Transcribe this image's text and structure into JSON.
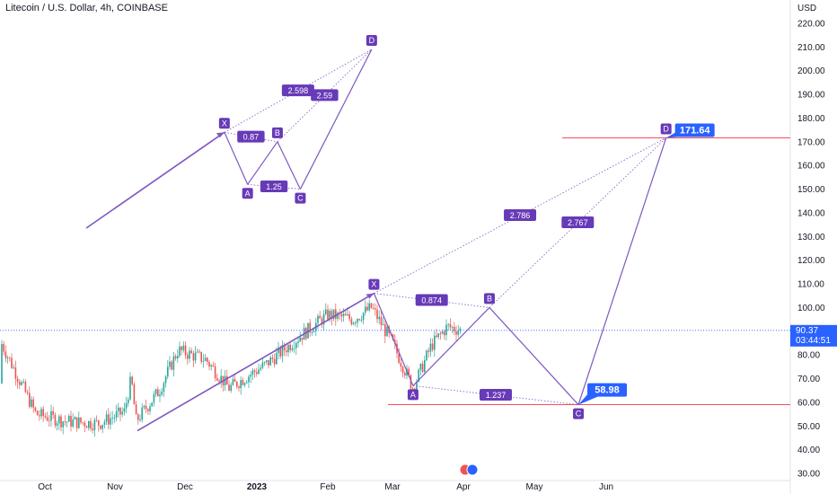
{
  "header": {
    "title": "Litecoin / U.S. Dollar, 4h, COINBASE"
  },
  "chart_data": {
    "type": "candlestick",
    "currency_label": "USD",
    "y_ticks": [
      "220.00",
      "210.00",
      "200.00",
      "190.00",
      "180.00",
      "170.00",
      "160.00",
      "150.00",
      "140.00",
      "130.00",
      "120.00",
      "110.00",
      "100.00",
      "90.00",
      "80.00",
      "70.00",
      "60.00",
      "50.00",
      "40.00",
      "30.00"
    ],
    "y_tick_values": [
      220,
      210,
      200,
      190,
      180,
      170,
      160,
      150,
      140,
      130,
      120,
      110,
      100,
      90,
      80,
      70,
      60,
      50,
      40,
      30
    ],
    "x_ticks": [
      "Oct",
      "Nov",
      "Dec",
      "2023",
      "Feb",
      "Mar",
      "Apr",
      "May",
      "Jun"
    ],
    "ylim": [
      28,
      229
    ],
    "current_price": {
      "label": "90.37",
      "value": 90.37,
      "countdown": "03:44:51"
    },
    "horizontal_levels": [
      171.64,
      58.98
    ],
    "price_labels": [
      {
        "label": "171.64",
        "value": 171.64
      },
      {
        "label": "58.98",
        "value": 58.98
      }
    ],
    "price_series_approx": [
      {
        "date": "2022-09-15",
        "value": 68
      },
      {
        "date": "2022-09-25",
        "value": 55
      },
      {
        "date": "2022-10-10",
        "value": 52
      },
      {
        "date": "2022-10-25",
        "value": 51
      },
      {
        "date": "2022-11-05",
        "value": 56
      },
      {
        "date": "2022-11-08",
        "value": 70
      },
      {
        "date": "2022-11-10",
        "value": 52
      },
      {
        "date": "2022-11-20",
        "value": 65
      },
      {
        "date": "2022-11-28",
        "value": 82
      },
      {
        "date": "2022-12-10",
        "value": 78
      },
      {
        "date": "2022-12-20",
        "value": 66
      },
      {
        "date": "2023-01-05",
        "value": 76
      },
      {
        "date": "2023-01-20",
        "value": 88
      },
      {
        "date": "2023-02-01",
        "value": 97
      },
      {
        "date": "2023-02-12",
        "value": 95
      },
      {
        "date": "2023-02-20",
        "value": 100
      },
      {
        "date": "2023-03-01",
        "value": 85
      },
      {
        "date": "2023-03-10",
        "value": 66
      },
      {
        "date": "2023-03-18",
        "value": 84
      },
      {
        "date": "2023-03-25",
        "value": 92
      },
      {
        "date": "2023-03-31",
        "value": 90.37
      }
    ],
    "patterns": [
      {
        "points": [
          {
            "name": "X",
            "date": "2023-02-21",
            "value": 106
          },
          {
            "name": "A",
            "date": "2023-03-10",
            "value": 67
          },
          {
            "name": "B",
            "date": "2023-04-12",
            "value": 100
          },
          {
            "name": "C",
            "date": "2023-05-20",
            "value": 58.98
          },
          {
            "name": "D",
            "date": "2023-06-26",
            "value": 171.64
          }
        ],
        "ratios": [
          "0.874",
          "1.237",
          "2.786",
          "2.767"
        ]
      }
    ],
    "illustration": {
      "points": [
        {
          "name": "X",
          "date": "2022-12-18",
          "value": 174
        },
        {
          "name": "A",
          "date": "2022-12-28",
          "value": 152
        },
        {
          "name": "B",
          "date": "2023-01-10",
          "value": 170
        },
        {
          "name": "C",
          "date": "2023-01-20",
          "value": 150
        },
        {
          "name": "D",
          "date": "2023-02-20",
          "value": 209
        }
      ],
      "ratios": [
        "0.87",
        "1.25",
        "2.598",
        "2.59"
      ]
    },
    "colors": {
      "pattern": "#7e57c2",
      "label_bg": "#673ab7",
      "price_label": "#2962ff",
      "level_line": "#f23645",
      "candle_up": "#26a69a",
      "candle_down": "#ef5350"
    }
  }
}
